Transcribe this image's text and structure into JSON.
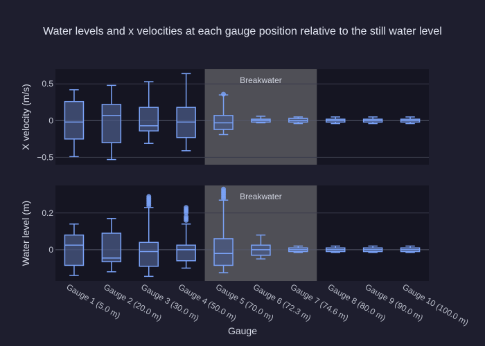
{
  "chart_data": {
    "type": "box",
    "title": "Water levels and x velocities at each gauge position relative to the still water level",
    "xlabel": "Gauge",
    "categories": [
      "Gauge 1 (5.0 m)",
      "Gauge 2 (20.0 m)",
      "Gauge 3 (30.0 m)",
      "Gauge 4 (50.0 m)",
      "Gauge 5 (70.0 m)",
      "Gauge 6 (72.3 m)",
      "Gauge 7 (74.6 m)",
      "Gauge 8 (80.0 m)",
      "Gauge 9 (90.0 m)",
      "Gauge 10 (100.0 m)"
    ],
    "colors": {
      "background": "#1e1e2e",
      "plot_bg": "#151522",
      "box_line": "#7aa2f7",
      "box_fill": "#4a5a85",
      "region_fill": "#52525a"
    },
    "panels": [
      {
        "id": "velocity",
        "ylabel": "X velocity (m/s)",
        "ylim": [
          -0.6,
          0.7
        ],
        "yticks": [
          -0.5,
          0,
          0.5
        ],
        "ytick_labels": [
          "−0.5",
          "0",
          "0.5"
        ],
        "region": {
          "label": "Breakwater",
          "from_category": 4,
          "to_category": 6
        },
        "boxes": [
          {
            "min": -0.49,
            "q1": -0.25,
            "median": -0.02,
            "q3": 0.26,
            "max": 0.42,
            "outliers": []
          },
          {
            "min": -0.53,
            "q1": -0.3,
            "median": 0.07,
            "q3": 0.22,
            "max": 0.48,
            "outliers": []
          },
          {
            "min": -0.31,
            "q1": -0.14,
            "median": -0.07,
            "q3": 0.18,
            "max": 0.53,
            "outliers": []
          },
          {
            "min": -0.41,
            "q1": -0.23,
            "median": -0.02,
            "q3": 0.18,
            "max": 0.64,
            "outliers": []
          },
          {
            "min": -0.19,
            "q1": -0.12,
            "median": -0.03,
            "q3": 0.07,
            "max": 0.35,
            "outliers": [
              0.36
            ]
          },
          {
            "min": -0.03,
            "q1": -0.02,
            "median": 0.0,
            "q3": 0.02,
            "max": 0.06,
            "outliers": []
          },
          {
            "min": -0.04,
            "q1": -0.02,
            "median": 0.0,
            "q3": 0.03,
            "max": 0.05,
            "outliers": []
          },
          {
            "min": -0.04,
            "q1": -0.02,
            "median": 0.0,
            "q3": 0.02,
            "max": 0.05,
            "outliers": []
          },
          {
            "min": -0.04,
            "q1": -0.02,
            "median": 0.0,
            "q3": 0.02,
            "max": 0.05,
            "outliers": []
          },
          {
            "min": -0.04,
            "q1": -0.02,
            "median": 0.0,
            "q3": 0.02,
            "max": 0.05,
            "outliers": []
          }
        ]
      },
      {
        "id": "water-level",
        "ylabel": "Water level (m)",
        "ylim": [
          -0.17,
          0.35
        ],
        "yticks": [
          0,
          0.2
        ],
        "ytick_labels": [
          "0",
          "0.2"
        ],
        "region": {
          "label": "Breakwater",
          "from_category": 4,
          "to_category": 6
        },
        "boxes": [
          {
            "min": -0.14,
            "q1": -0.085,
            "median": 0.025,
            "q3": 0.08,
            "max": 0.14,
            "outliers": []
          },
          {
            "min": -0.12,
            "q1": -0.065,
            "median": -0.045,
            "q3": 0.09,
            "max": 0.17,
            "outliers": []
          },
          {
            "min": -0.145,
            "q1": -0.09,
            "median": -0.01,
            "q3": 0.04,
            "max": 0.23,
            "outliers": [
              0.24,
              0.25,
              0.26,
              0.27,
              0.28,
              0.29
            ]
          },
          {
            "min": -0.1,
            "q1": -0.06,
            "median": 0.0,
            "q3": 0.025,
            "max": 0.14,
            "outliers": [
              0.16,
              0.17,
              0.18,
              0.2,
              0.21,
              0.22,
              0.23
            ]
          },
          {
            "min": -0.125,
            "q1": -0.085,
            "median": -0.02,
            "q3": 0.06,
            "max": 0.27,
            "outliers": [
              0.28,
              0.29,
              0.3,
              0.31,
              0.32,
              0.33
            ]
          },
          {
            "min": -0.05,
            "q1": -0.03,
            "median": 0.0,
            "q3": 0.025,
            "max": 0.08,
            "outliers": []
          },
          {
            "min": -0.015,
            "q1": -0.01,
            "median": 0.0,
            "q3": 0.01,
            "max": 0.02,
            "outliers": []
          },
          {
            "min": -0.015,
            "q1": -0.01,
            "median": 0.0,
            "q3": 0.01,
            "max": 0.02,
            "outliers": []
          },
          {
            "min": -0.015,
            "q1": -0.01,
            "median": 0.0,
            "q3": 0.01,
            "max": 0.02,
            "outliers": []
          },
          {
            "min": -0.015,
            "q1": -0.01,
            "median": 0.0,
            "q3": 0.01,
            "max": 0.02,
            "outliers": []
          }
        ]
      }
    ]
  }
}
